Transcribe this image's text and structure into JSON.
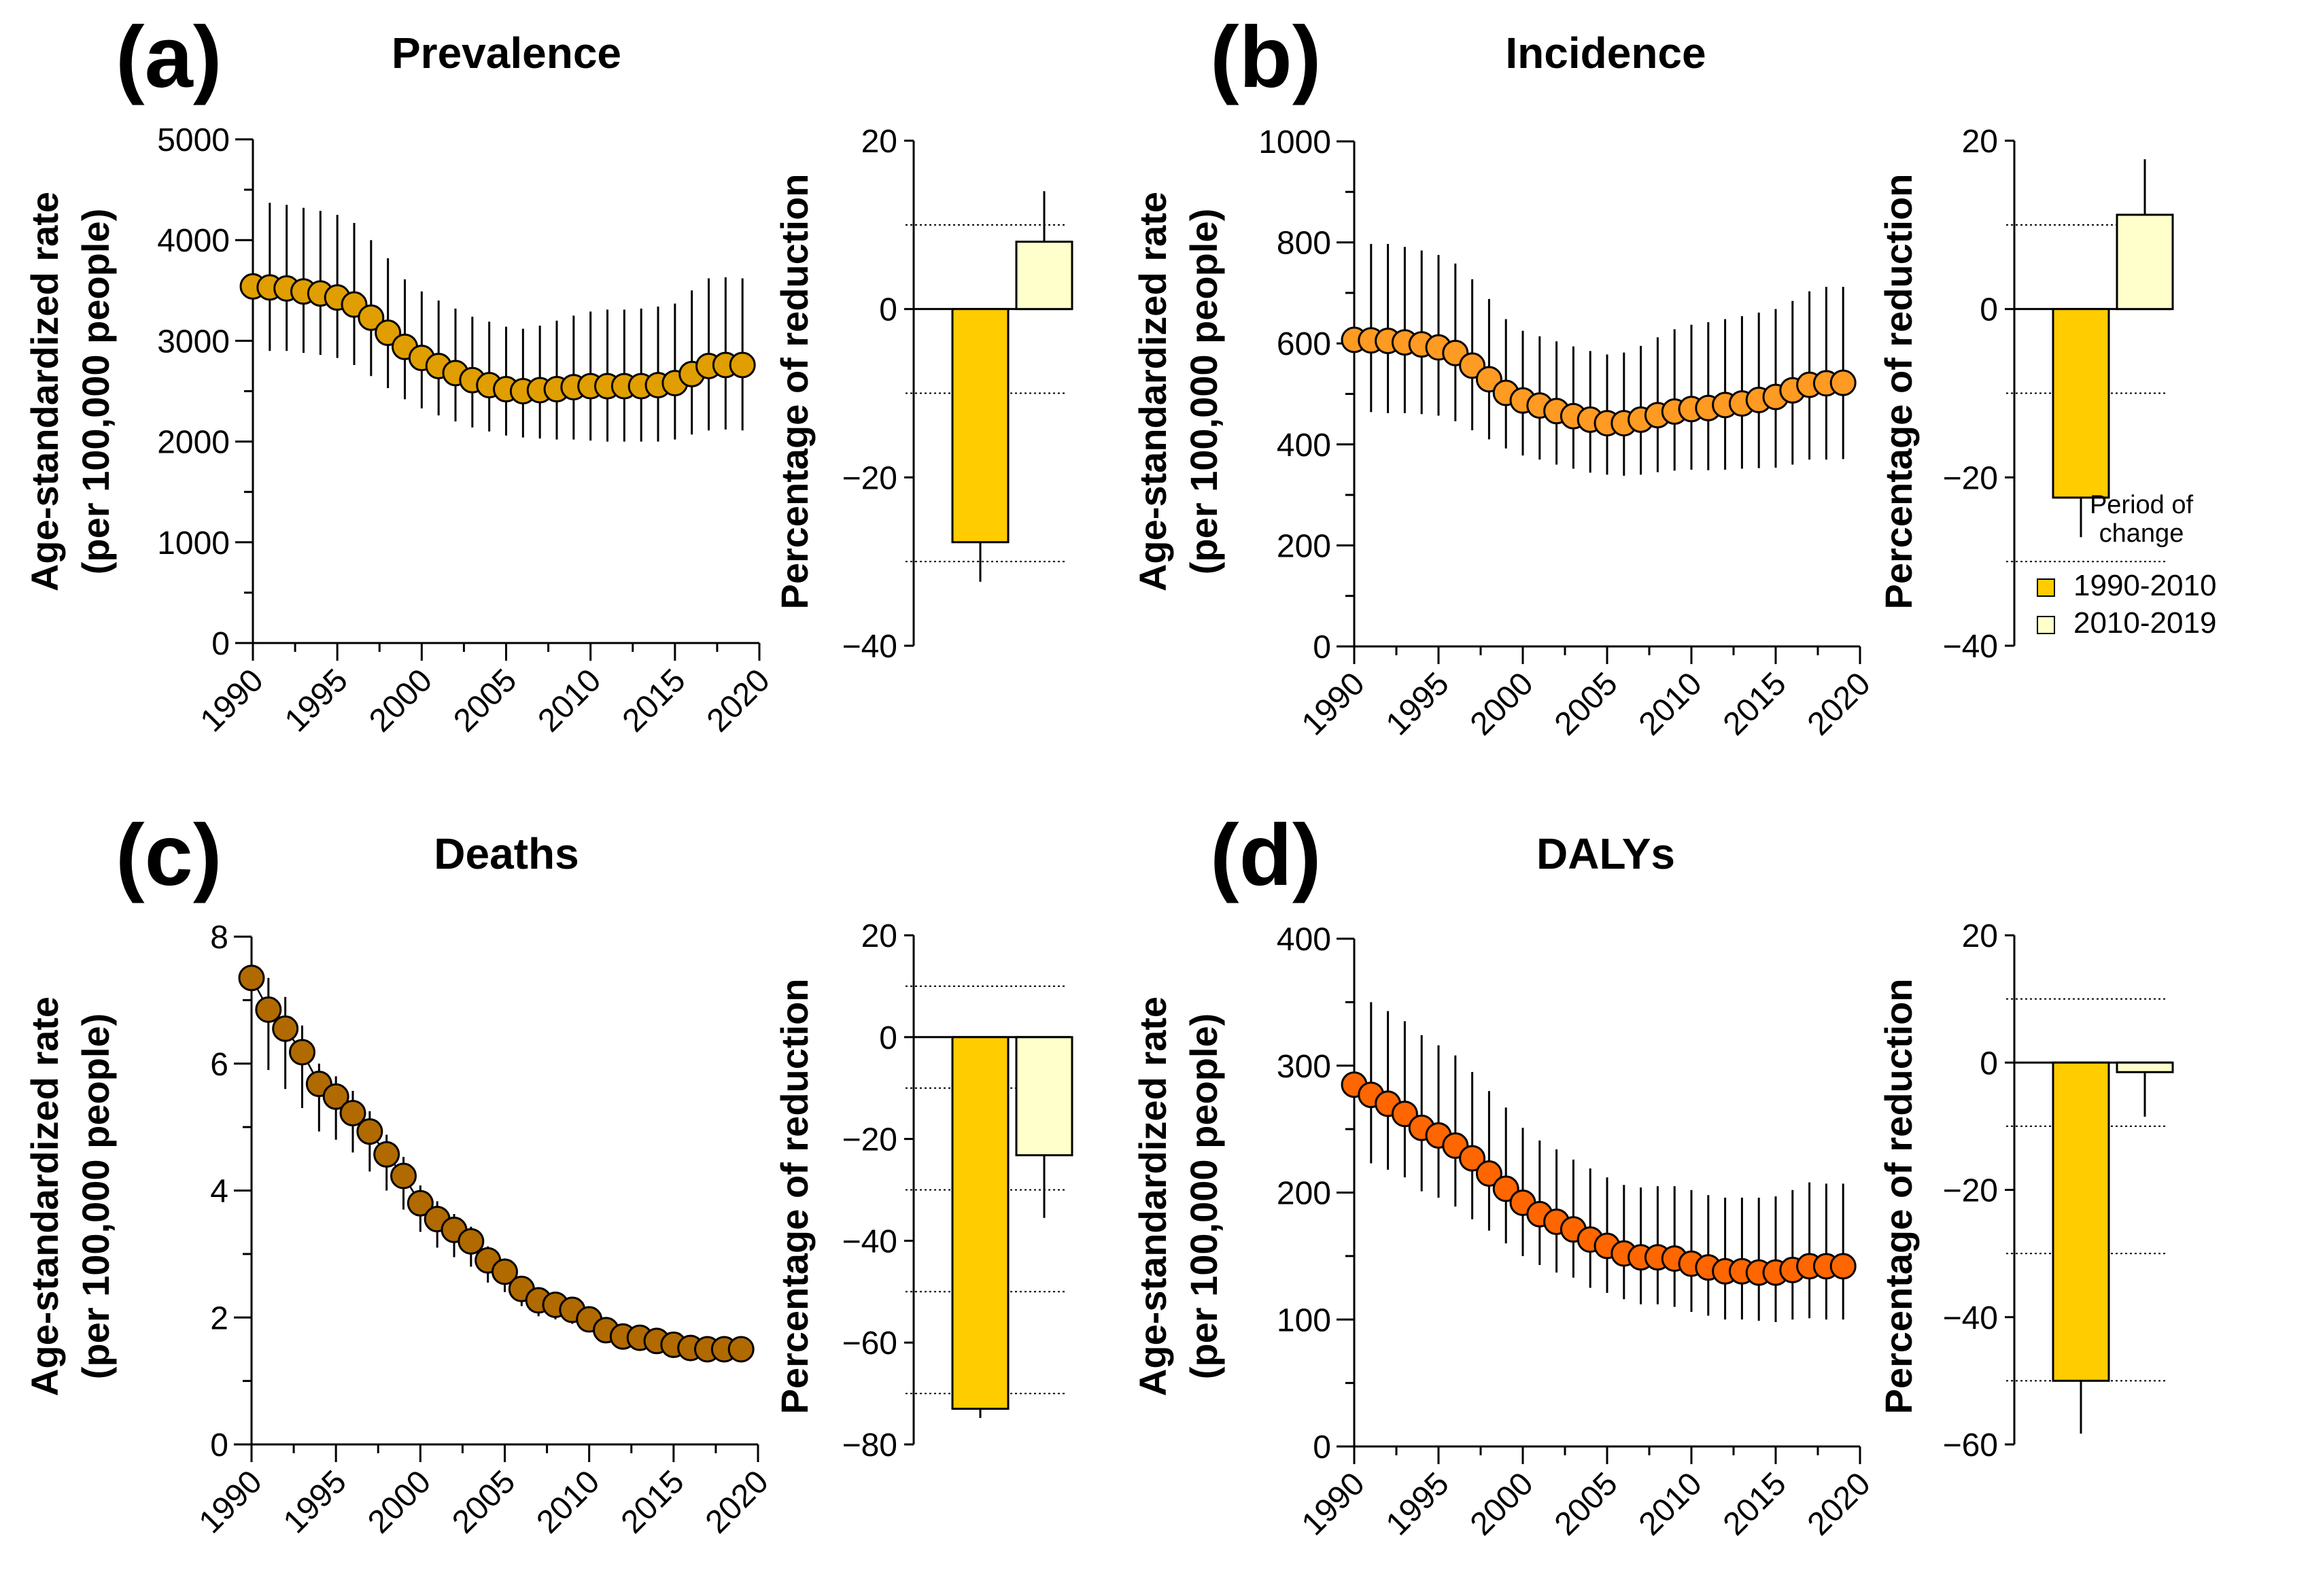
{
  "chart_data": [
    {
      "type": "scatter",
      "panel": "(a)",
      "title": "Prevalence",
      "ylabel": [
        "Age-standardized rate",
        "(per 100,000 people)"
      ],
      "xlabel": "",
      "xlim": [
        1990,
        2020
      ],
      "ylim": [
        0,
        5000
      ],
      "xticks": [
        "1990",
        "1995",
        "2000",
        "2005",
        "2010",
        "2015",
        "2020"
      ],
      "yticks": [
        "0",
        "1000",
        "2000",
        "3000",
        "4000",
        "5000"
      ],
      "color": "#E09E00",
      "connected": false,
      "x": [
        1990,
        1991,
        1992,
        1993,
        1994,
        1995,
        1996,
        1997,
        1998,
        1999,
        2000,
        2001,
        2002,
        2003,
        2004,
        2005,
        2006,
        2007,
        2008,
        2009,
        2010,
        2011,
        2012,
        2013,
        2014,
        2015,
        2016,
        2017,
        2018,
        2019
      ],
      "values": [
        3540,
        3530,
        3520,
        3490,
        3470,
        3430,
        3360,
        3230,
        3080,
        2940,
        2830,
        2750,
        2680,
        2610,
        2560,
        2520,
        2500,
        2510,
        2520,
        2540,
        2550,
        2550,
        2550,
        2550,
        2560,
        2580,
        2670,
        2750,
        2760,
        2760
      ],
      "lower": [
        2960,
        2900,
        2900,
        2880,
        2860,
        2830,
        2760,
        2650,
        2530,
        2420,
        2330,
        2260,
        2200,
        2140,
        2100,
        2060,
        2040,
        2030,
        2020,
        2020,
        2010,
        2000,
        2000,
        2000,
        2000,
        2020,
        2070,
        2110,
        2120,
        2110
      ],
      "upper": [
        3540,
        4370,
        4350,
        4320,
        4290,
        4250,
        4170,
        4000,
        3820,
        3610,
        3490,
        3400,
        3320,
        3240,
        3190,
        3140,
        3120,
        3150,
        3200,
        3250,
        3290,
        3310,
        3310,
        3320,
        3340,
        3370,
        3500,
        3620,
        3630,
        3620
      ],
      "bar_chart": {
        "type": "bar",
        "ylabel": "Percentage of reduction",
        "ylim": [
          -40,
          20
        ],
        "yticks": [
          "20",
          "0",
          "−20",
          "−40"
        ],
        "gridlines": [
          10,
          -10,
          -30
        ],
        "categories": [
          "1990-2010",
          "2010-2019"
        ],
        "values": [
          -27.7,
          8.0
        ],
        "error_ends": [
          -32.4,
          14.0
        ]
      }
    },
    {
      "type": "scatter",
      "panel": "(b)",
      "title": "Incidence",
      "ylabel": [
        "Age-standardized rate",
        "(per 100,000 people)"
      ],
      "xlabel": "",
      "xlim": [
        1990,
        2020
      ],
      "ylim": [
        0,
        1000
      ],
      "xticks": [
        "1990",
        "1995",
        "2000",
        "2005",
        "2010",
        "2015",
        "2020"
      ],
      "yticks": [
        "0",
        "200",
        "400",
        "600",
        "800",
        "1000"
      ],
      "color": "#FF9A22",
      "connected": false,
      "x": [
        1990,
        1991,
        1992,
        1993,
        1994,
        1995,
        1996,
        1997,
        1998,
        1999,
        2000,
        2001,
        2002,
        2003,
        2004,
        2005,
        2006,
        2007,
        2008,
        2009,
        2010,
        2011,
        2012,
        2013,
        2014,
        2015,
        2016,
        2017,
        2018,
        2019
      ],
      "values": [
        607,
        606,
        605,
        602,
        598,
        592,
        581,
        556,
        529,
        502,
        487,
        477,
        466,
        456,
        449,
        442,
        442,
        449,
        458,
        465,
        470,
        472,
        478,
        481,
        488,
        494,
        507,
        518,
        521,
        522
      ],
      "lower": [
        607,
        464,
        462,
        462,
        460,
        457,
        446,
        428,
        410,
        392,
        378,
        370,
        360,
        352,
        344,
        340,
        338,
        340,
        345,
        348,
        350,
        349,
        350,
        352,
        353,
        354,
        360,
        370,
        370,
        371
      ],
      "upper": [
        607,
        797,
        797,
        791,
        784,
        775,
        758,
        727,
        688,
        648,
        625,
        614,
        604,
        594,
        585,
        578,
        582,
        595,
        612,
        628,
        637,
        642,
        648,
        654,
        661,
        668,
        684,
        703,
        712,
        712
      ],
      "bar_chart": {
        "type": "bar",
        "ylabel": "Percentage of reduction",
        "ylim": [
          -40,
          20
        ],
        "yticks": [
          "20",
          "0",
          "−20",
          "−40"
        ],
        "gridlines": [
          10,
          -10,
          -30
        ],
        "categories": [
          "1990-2010",
          "2010-2019"
        ],
        "values": [
          -22.4,
          11.2
        ],
        "error_ends": [
          -27.1,
          17.8
        ]
      },
      "legend": {
        "title": [
          "Period of",
          "change"
        ],
        "placement": "bottom-right",
        "items": [
          {
            "label": "1990-2010",
            "color": "#FFCC00"
          },
          {
            "label": "2010-2019",
            "color": "#FFFFCC"
          }
        ]
      }
    },
    {
      "type": "line",
      "panel": "(c)",
      "title": "Deaths",
      "ylabel": [
        "Age-standardized rate",
        "(per 100,000 people)"
      ],
      "xlabel": "",
      "xlim": [
        1990,
        2020
      ],
      "ylim": [
        0,
        8
      ],
      "xticks": [
        "1990",
        "1995",
        "2000",
        "2005",
        "2010",
        "2015",
        "2020"
      ],
      "yticks": [
        "0",
        "2",
        "4",
        "6",
        "8"
      ],
      "color": "#B06A00",
      "connected": true,
      "x": [
        1990,
        1991,
        1992,
        1993,
        1994,
        1995,
        1996,
        1997,
        1998,
        1999,
        2000,
        2001,
        2002,
        2003,
        2004,
        2005,
        2006,
        2007,
        2008,
        2009,
        2010,
        2011,
        2012,
        2013,
        2014,
        2015,
        2016,
        2017,
        2018,
        2019
      ],
      "values": [
        7.35,
        6.85,
        6.55,
        6.18,
        5.68,
        5.48,
        5.22,
        4.93,
        4.57,
        4.23,
        3.8,
        3.55,
        3.38,
        3.2,
        2.9,
        2.72,
        2.45,
        2.27,
        2.2,
        2.12,
        1.97,
        1.8,
        1.7,
        1.68,
        1.63,
        1.57,
        1.52,
        1.5,
        1.5,
        1.5
      ],
      "lower": [
        7.35,
        5.9,
        5.6,
        5.3,
        4.93,
        4.8,
        4.6,
        4.3,
        4.0,
        3.7,
        3.35,
        3.1,
        2.95,
        2.8,
        2.55,
        2.4,
        2.18,
        2.02,
        1.97,
        1.9,
        1.77,
        1.62,
        1.54,
        1.52,
        1.47,
        1.41,
        1.37,
        1.34,
        1.33,
        1.3
      ],
      "upper": [
        7.35,
        7.35,
        7.05,
        6.6,
        6.0,
        5.8,
        5.57,
        5.25,
        4.88,
        4.53,
        4.08,
        3.83,
        3.63,
        3.43,
        3.12,
        2.93,
        2.65,
        2.45,
        2.38,
        2.3,
        2.15,
        1.98,
        1.88,
        1.86,
        1.8,
        1.74,
        1.68,
        1.66,
        1.67,
        1.7
      ],
      "bar_chart": {
        "type": "bar",
        "ylabel": "Percentage of reduction",
        "ylim": [
          -80,
          20
        ],
        "yticks": [
          "20",
          "0",
          "−20",
          "−40",
          "−60",
          "−80"
        ],
        "gridlines": [
          10,
          -10,
          -30,
          -50,
          -70
        ],
        "categories": [
          "1990-2010",
          "2010-2019"
        ],
        "values": [
          -73.0,
          -23.2
        ],
        "error_ends": [
          -74.8,
          -35.5
        ]
      }
    },
    {
      "type": "scatter",
      "panel": "(d)",
      "title": "DALYs",
      "ylabel": [
        "Age-standardized rate",
        "(per 100,000 people)"
      ],
      "xlabel": "",
      "xlim": [
        1990,
        2020
      ],
      "ylim": [
        0,
        400
      ],
      "xticks": [
        "1990",
        "1995",
        "2000",
        "2005",
        "2010",
        "2015",
        "2020"
      ],
      "yticks": [
        "0",
        "100",
        "200",
        "300",
        "400"
      ],
      "color": "#FF6600",
      "connected": false,
      "x": [
        1990,
        1991,
        1992,
        1993,
        1994,
        1995,
        1996,
        1997,
        1998,
        1999,
        2000,
        2001,
        2002,
        2003,
        2004,
        2005,
        2006,
        2007,
        2008,
        2009,
        2010,
        2011,
        2012,
        2013,
        2014,
        2015,
        2016,
        2017,
        2018,
        2019
      ],
      "values": [
        285,
        277,
        270,
        262,
        251,
        245,
        237,
        227,
        215,
        203,
        192,
        183,
        177,
        171,
        163,
        158,
        152,
        149,
        149,
        148,
        144,
        141,
        138,
        138,
        137,
        137,
        139,
        142,
        142,
        142
      ],
      "lower": [
        285,
        223,
        218,
        212,
        201,
        196,
        189,
        179,
        170,
        160,
        150,
        143,
        137,
        133,
        125,
        121,
        116,
        112,
        112,
        110,
        106,
        103,
        100,
        100,
        99,
        98,
        100,
        101,
        100,
        100
      ],
      "upper": [
        285,
        350,
        343,
        335,
        324,
        316,
        308,
        295,
        280,
        267,
        251,
        241,
        234,
        226,
        219,
        212,
        206,
        204,
        205,
        205,
        202,
        198,
        196,
        196,
        196,
        197,
        202,
        208,
        207,
        207
      ],
      "bar_chart": {
        "type": "bar",
        "ylabel": "Percentage of reduction",
        "ylim": [
          -60,
          20
        ],
        "yticks": [
          "20",
          "0",
          "−20",
          "−40",
          "−60"
        ],
        "gridlines": [
          10,
          -10,
          -30,
          -50
        ],
        "categories": [
          "1990-2010",
          "2010-2019"
        ],
        "values": [
          -50.0,
          -1.5
        ],
        "error_ends": [
          -58.3,
          -8.5
        ]
      }
    }
  ],
  "bar_colors": [
    "#FFCC00",
    "#FFFFCC"
  ]
}
